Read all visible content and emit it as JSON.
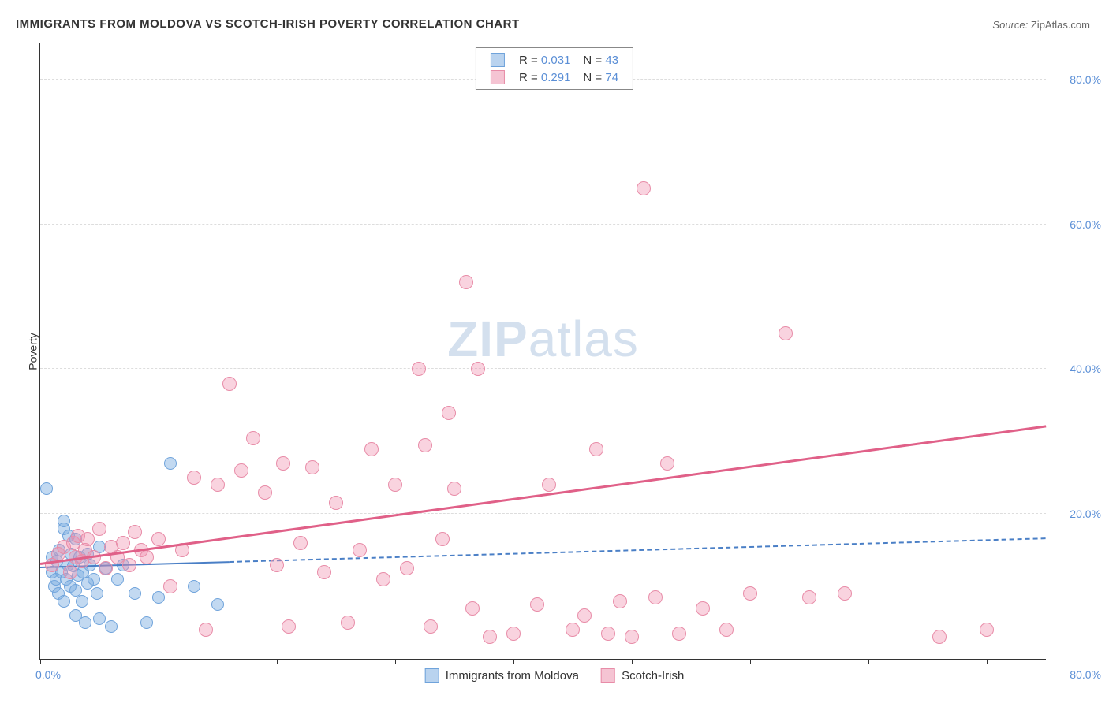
{
  "title": "IMMIGRANTS FROM MOLDOVA VS SCOTCH-IRISH POVERTY CORRELATION CHART",
  "source_label": "Source:",
  "source_value": "ZipAtlas.com",
  "watermark_bold": "ZIP",
  "watermark_rest": "atlas",
  "y_axis_title": "Poverty",
  "axes": {
    "xlim": [
      0,
      85
    ],
    "ylim": [
      0,
      85
    ],
    "y_ticks": [
      20,
      40,
      60,
      80
    ],
    "y_tick_labels": [
      "20.0%",
      "40.0%",
      "60.0%",
      "80.0%"
    ],
    "x_ticks": [
      0,
      10,
      20,
      30,
      40,
      50,
      60,
      70,
      80
    ],
    "x_label_min": "0.0%",
    "x_label_max": "80.0%",
    "grid_color": "#dddddd",
    "axis_color": "#333333",
    "tick_label_color": "#5b8fd6"
  },
  "series": [
    {
      "key": "moldova",
      "label": "Immigrants from Moldova",
      "color_fill": "rgba(120,170,225,0.45)",
      "color_stroke": "#6fa3db",
      "swatch_fill": "#b9d3ef",
      "swatch_border": "#6fa3db",
      "marker_radius": 8,
      "R": "0.031",
      "N": "43",
      "trend": {
        "x1": 0,
        "y1": 12.5,
        "x2": 85,
        "y2": 16.5,
        "color": "#4a7fc6",
        "width": 2,
        "dashed": true,
        "solid_until_x": 16
      },
      "points": [
        [
          0.5,
          23.5
        ],
        [
          1,
          12
        ],
        [
          1,
          14
        ],
        [
          1.2,
          10
        ],
        [
          1.3,
          11
        ],
        [
          1.4,
          13.5
        ],
        [
          1.5,
          9
        ],
        [
          1.6,
          15
        ],
        [
          1.8,
          12
        ],
        [
          2,
          8
        ],
        [
          2,
          18
        ],
        [
          2,
          19
        ],
        [
          2.2,
          11
        ],
        [
          2.3,
          13
        ],
        [
          2.4,
          17
        ],
        [
          2.5,
          10
        ],
        [
          2.6,
          14.5
        ],
        [
          2.8,
          12.8
        ],
        [
          3,
          6
        ],
        [
          3,
          9.5
        ],
        [
          3,
          16.5
        ],
        [
          3.2,
          11.5
        ],
        [
          3.3,
          14
        ],
        [
          3.5,
          8
        ],
        [
          3.6,
          12
        ],
        [
          3.8,
          5
        ],
        [
          4,
          10.5
        ],
        [
          4,
          14.5
        ],
        [
          4.2,
          13
        ],
        [
          4.5,
          11
        ],
        [
          4.8,
          9
        ],
        [
          5,
          15.5
        ],
        [
          5,
          5.5
        ],
        [
          5.5,
          12.5
        ],
        [
          6,
          4.5
        ],
        [
          6.5,
          11
        ],
        [
          7,
          13
        ],
        [
          8,
          9
        ],
        [
          9,
          5
        ],
        [
          10,
          8.5
        ],
        [
          11,
          27
        ],
        [
          13,
          10
        ],
        [
          15,
          7.5
        ]
      ]
    },
    {
      "key": "scotch_irish",
      "label": "Scotch-Irish",
      "color_fill": "rgba(240,145,175,0.40)",
      "color_stroke": "#e88ca8",
      "swatch_fill": "#f5c4d3",
      "swatch_border": "#e88ca8",
      "marker_radius": 9,
      "R": "0.291",
      "N": "74",
      "trend": {
        "x1": 0,
        "y1": 13,
        "x2": 85,
        "y2": 32,
        "color": "#e06088",
        "width": 2.5,
        "dashed": false
      },
      "points": [
        [
          1,
          13
        ],
        [
          1.5,
          14.5
        ],
        [
          2,
          15.5
        ],
        [
          2.5,
          12
        ],
        [
          2.8,
          16
        ],
        [
          3,
          14
        ],
        [
          3.2,
          17
        ],
        [
          3.5,
          13.5
        ],
        [
          3.8,
          15
        ],
        [
          4,
          16.5
        ],
        [
          4.5,
          14
        ],
        [
          5,
          18
        ],
        [
          5.5,
          12.5
        ],
        [
          6,
          15.5
        ],
        [
          6.5,
          14
        ],
        [
          7,
          16
        ],
        [
          7.5,
          13
        ],
        [
          8,
          17.5
        ],
        [
          8.5,
          15
        ],
        [
          9,
          14
        ],
        [
          10,
          16.5
        ],
        [
          11,
          10
        ],
        [
          12,
          15
        ],
        [
          13,
          25
        ],
        [
          14,
          4
        ],
        [
          15,
          24
        ],
        [
          16,
          38
        ],
        [
          17,
          26
        ],
        [
          18,
          30.5
        ],
        [
          19,
          23
        ],
        [
          20,
          13
        ],
        [
          20.5,
          27
        ],
        [
          21,
          4.5
        ],
        [
          22,
          16
        ],
        [
          23,
          26.5
        ],
        [
          24,
          12
        ],
        [
          25,
          21.5
        ],
        [
          26,
          5
        ],
        [
          27,
          15
        ],
        [
          28,
          29
        ],
        [
          29,
          11
        ],
        [
          30,
          24
        ],
        [
          31,
          12.5
        ],
        [
          32,
          40
        ],
        [
          32.5,
          29.5
        ],
        [
          33,
          4.5
        ],
        [
          34,
          16.5
        ],
        [
          34.5,
          34
        ],
        [
          35,
          23.5
        ],
        [
          36,
          52
        ],
        [
          36.5,
          7
        ],
        [
          37,
          40
        ],
        [
          38,
          3
        ],
        [
          40,
          3.5
        ],
        [
          42,
          7.5
        ],
        [
          43,
          24
        ],
        [
          45,
          4
        ],
        [
          46,
          6
        ],
        [
          47,
          29
        ],
        [
          48,
          3.5
        ],
        [
          49,
          8
        ],
        [
          50,
          3
        ],
        [
          51,
          65
        ],
        [
          52,
          8.5
        ],
        [
          53,
          27
        ],
        [
          54,
          3.5
        ],
        [
          56,
          7
        ],
        [
          58,
          4
        ],
        [
          60,
          9
        ],
        [
          63,
          45
        ],
        [
          65,
          8.5
        ],
        [
          68,
          9
        ],
        [
          76,
          3
        ],
        [
          80,
          4
        ]
      ]
    }
  ],
  "stats_legend": {
    "R_label": "R =",
    "N_label": "N ="
  }
}
